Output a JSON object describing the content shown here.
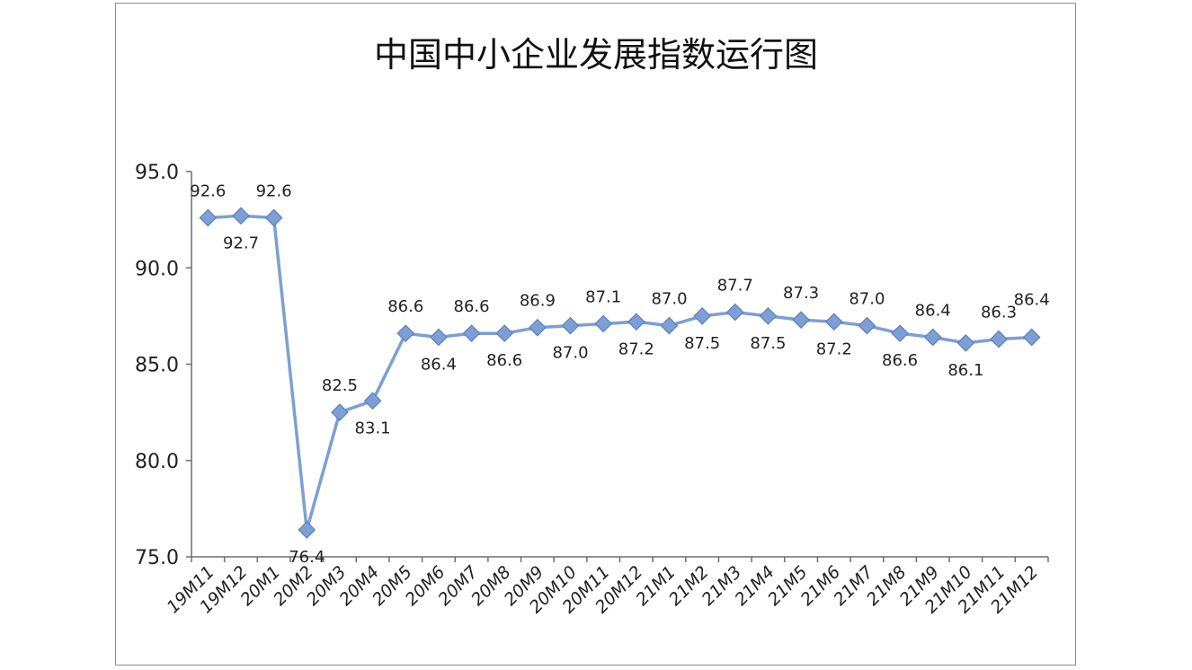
{
  "chart_data": {
    "type": "line",
    "title": "中国中小企业发展指数运行图",
    "categories": [
      "19M11",
      "19M12",
      "20M1",
      "20M2",
      "20M3",
      "20M4",
      "20M5",
      "20M6",
      "20M7",
      "20M8",
      "20M9",
      "20M10",
      "20M11",
      "20M12",
      "21M1",
      "21M2",
      "21M3",
      "21M4",
      "21M5",
      "21M6",
      "21M7",
      "21M8",
      "21M9",
      "21M10",
      "21M11",
      "21M12"
    ],
    "values": [
      92.6,
      92.7,
      92.6,
      76.4,
      82.5,
      83.1,
      86.6,
      86.4,
      86.6,
      86.6,
      86.9,
      87.0,
      87.1,
      87.2,
      87.0,
      87.5,
      87.7,
      87.5,
      87.3,
      87.2,
      87.0,
      86.6,
      86.4,
      86.1,
      86.3,
      86.4
    ],
    "yticks": [
      "75.0",
      "80.0",
      "85.0",
      "90.0",
      "95.0"
    ],
    "ylim": [
      75,
      95
    ],
    "grid": false,
    "legend": "none",
    "marker": "diamond",
    "line_color": "#7d9fd3",
    "marker_color": "#7d9fd3",
    "marker_edge": "#5b7fbf",
    "axis_color": "#6e6e6e",
    "xlabel": "",
    "ylabel": ""
  }
}
